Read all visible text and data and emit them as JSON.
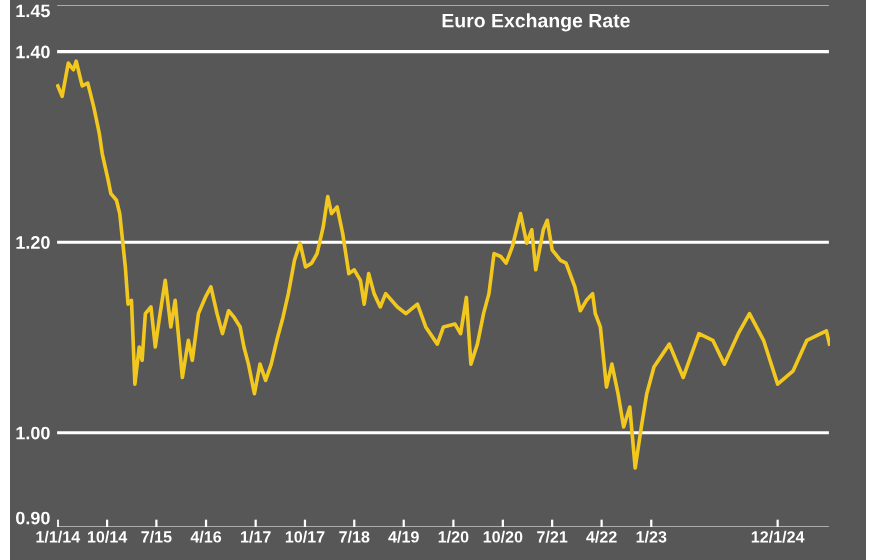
{
  "chart_data": {
    "type": "line",
    "title": "Euro Exchange Rate",
    "x": [
      "2014-01-01",
      "2014-01-25",
      "2014-02-28",
      "2014-03-28",
      "2014-04-13",
      "2014-05-16",
      "2014-06-16",
      "2014-07-19",
      "2014-08-19",
      "2014-09-04",
      "2014-10-07",
      "2014-10-22",
      "2014-11-22",
      "2014-12-10",
      "2015-01-10",
      "2015-01-25",
      "2015-02-13",
      "2015-03-04",
      "2015-03-28",
      "2015-04-13",
      "2015-05-01",
      "2015-06-01",
      "2015-06-25",
      "2015-07-16",
      "2015-08-19",
      "2015-09-19",
      "2015-10-13",
      "2015-11-22",
      "2015-12-25",
      "2016-01-16",
      "2016-02-19",
      "2016-03-28",
      "2016-04-28",
      "2016-06-01",
      "2016-07-01",
      "2016-08-04",
      "2016-09-04",
      "2016-10-07",
      "2016-10-28",
      "2016-11-22",
      "2016-12-25",
      "2017-01-25",
      "2017-02-25",
      "2017-03-28",
      "2017-04-28",
      "2017-06-01",
      "2017-07-01",
      "2017-08-04",
      "2017-09-04",
      "2017-10-04",
      "2017-11-07",
      "2017-12-07",
      "2018-01-10",
      "2018-02-04",
      "2018-02-25",
      "2018-03-28",
      "2018-04-28",
      "2018-06-01",
      "2018-07-01",
      "2018-08-04",
      "2018-08-25",
      "2018-09-19",
      "2018-10-19",
      "2018-11-22",
      "2018-12-22",
      "2019-02-25",
      "2019-04-13",
      "2019-05-28",
      "2019-06-16",
      "2019-08-01",
      "2019-10-04",
      "2019-11-07",
      "2020-01-10",
      "2020-02-10",
      "2020-03-13",
      "2020-04-07",
      "2020-05-13",
      "2020-06-16",
      "2020-07-16",
      "2020-08-13",
      "2020-09-19",
      "2020-10-19",
      "2020-11-22",
      "2021-01-07",
      "2021-02-10",
      "2021-03-10",
      "2021-04-01",
      "2021-05-13",
      "2021-06-04",
      "2021-07-01",
      "2021-08-16",
      "2021-09-16",
      "2021-11-04",
      "2021-12-04",
      "2022-01-07",
      "2022-02-10",
      "2022-02-25",
      "2022-03-25",
      "2022-04-28",
      "2022-05-28",
      "2022-07-01",
      "2022-08-01",
      "2022-09-04",
      "2022-10-04",
      "2022-11-07",
      "2022-12-07",
      "2023-01-16",
      "2023-04-11",
      "2023-06-27",
      "2023-09-22",
      "2023-12-08",
      "2024-02-10",
      "2024-04-27",
      "2024-06-28",
      "2024-09-14",
      "2024-12-01",
      "2025-02-25",
      "2025-05-12",
      "2025-08-28",
      "2025-09-14"
    ],
    "series": [
      {
        "color": "#f2c81e",
        "values": [
          1.364,
          1.353,
          1.388,
          1.381,
          1.39,
          1.364,
          1.367,
          1.342,
          1.314,
          1.293,
          1.265,
          1.251,
          1.244,
          1.23,
          1.174,
          1.135,
          1.139,
          1.051,
          1.09,
          1.076,
          1.125,
          1.132,
          1.09,
          1.118,
          1.16,
          1.111,
          1.139,
          1.058,
          1.097,
          1.076,
          1.125,
          1.142,
          1.153,
          1.125,
          1.104,
          1.128,
          1.121,
          1.111,
          1.09,
          1.072,
          1.041,
          1.072,
          1.055,
          1.072,
          1.097,
          1.121,
          1.146,
          1.181,
          1.199,
          1.174,
          1.178,
          1.188,
          1.216,
          1.248,
          1.23,
          1.237,
          1.209,
          1.167,
          1.171,
          1.16,
          1.135,
          1.167,
          1.146,
          1.132,
          1.146,
          1.132,
          1.125,
          1.132,
          1.135,
          1.111,
          1.093,
          1.111,
          1.114,
          1.104,
          1.142,
          1.072,
          1.093,
          1.125,
          1.146,
          1.188,
          1.185,
          1.178,
          1.195,
          1.23,
          1.199,
          1.213,
          1.171,
          1.213,
          1.223,
          1.192,
          1.181,
          1.178,
          1.153,
          1.128,
          1.139,
          1.146,
          1.125,
          1.111,
          1.048,
          1.072,
          1.041,
          1.006,
          1.027,
          0.963,
          1.006,
          1.041,
          1.069,
          1.093,
          1.058,
          1.104,
          1.097,
          1.072,
          1.104,
          1.125,
          1.097,
          1.051,
          1.065,
          1.097,
          1.107,
          1.093
        ]
      }
    ],
    "xlim": [
      "2013-12-22",
      "2025-09-17"
    ],
    "xticks": [
      {
        "value": "2014-01-01",
        "label": "1/1/14"
      },
      {
        "value": "2014-10-01",
        "label": "10/14"
      },
      {
        "value": "2015-07-01",
        "label": "7/15"
      },
      {
        "value": "2016-04-01",
        "label": "4/16"
      },
      {
        "value": "2017-01-01",
        "label": "1/17"
      },
      {
        "value": "2017-10-01",
        "label": "10/17"
      },
      {
        "value": "2018-07-01",
        "label": "7/18"
      },
      {
        "value": "2019-04-01",
        "label": "4/19"
      },
      {
        "value": "2020-01-01",
        "label": "1/20"
      },
      {
        "value": "2020-10-01",
        "label": "10/20"
      },
      {
        "value": "2021-07-01",
        "label": "7/21"
      },
      {
        "value": "2022-04-01",
        "label": "4/22"
      },
      {
        "value": "2023-01-01",
        "label": "1/23"
      },
      {
        "value": "2024-12-01",
        "label": "12/1/24"
      }
    ],
    "ylim": [
      0.9,
      1.45
    ],
    "yticks": [
      {
        "value": 0.9,
        "label": "0.90"
      },
      {
        "value": 1.0,
        "label": "1.00"
      },
      {
        "value": 1.2,
        "label": "1.20"
      },
      {
        "value": 1.4,
        "label": "1.40"
      },
      {
        "value": 1.45,
        "label": "1.45"
      }
    ],
    "grid": "y",
    "marker": "none",
    "line_style": "solid"
  }
}
